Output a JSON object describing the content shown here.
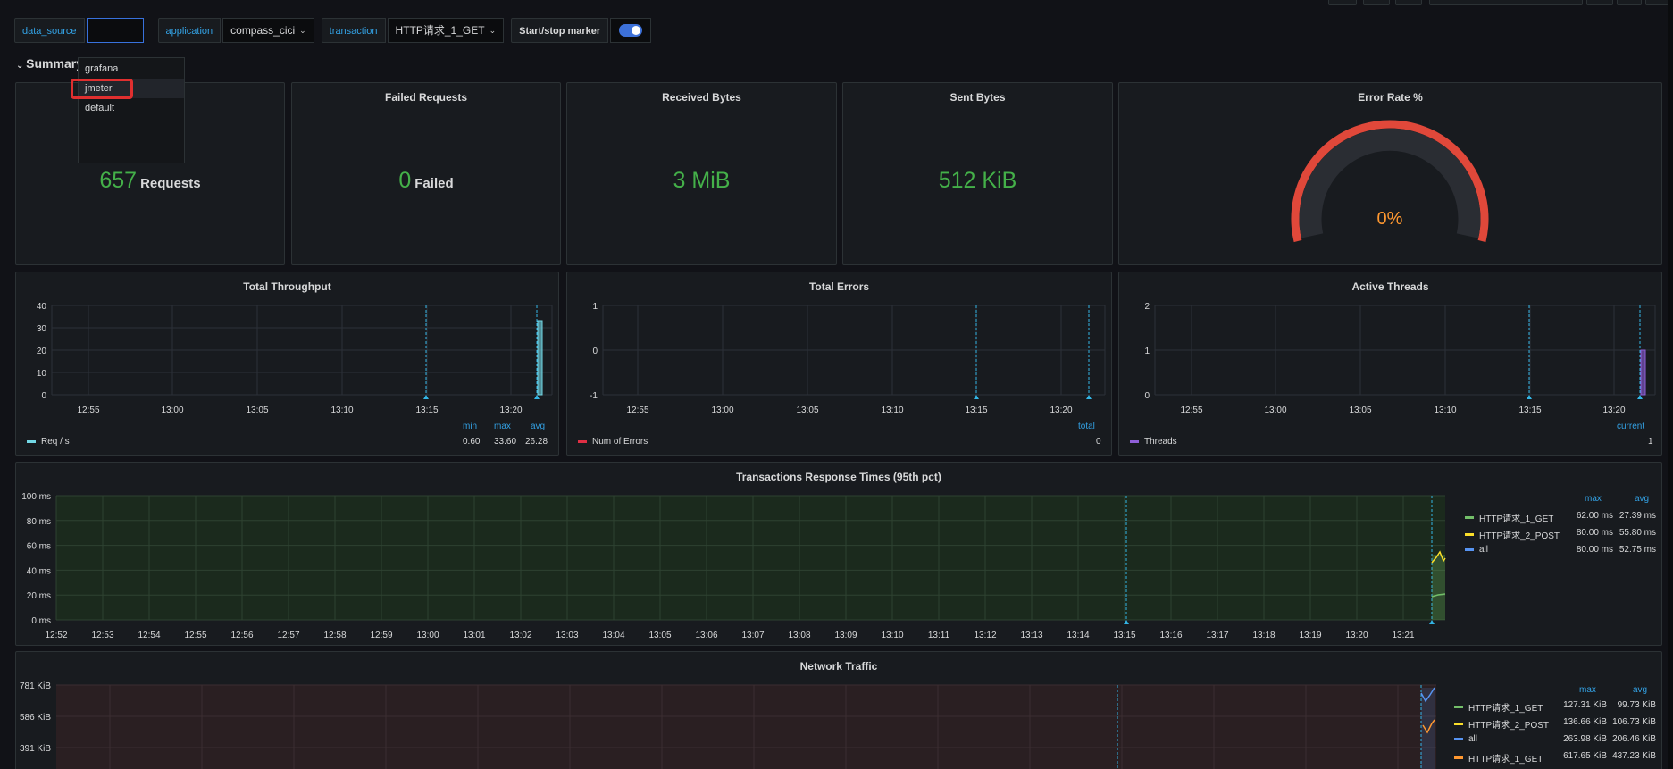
{
  "variables": {
    "data_source_label": "data_source",
    "data_source_value": "",
    "application_label": "application",
    "application_value": "compass_cici",
    "transaction_label": "transaction",
    "transaction_value": "HTTP请求_1_GET",
    "marker_label": "Start/stop marker"
  },
  "dropdown": {
    "options": [
      "grafana",
      "jmeter",
      "default"
    ],
    "highlighted": "jmeter"
  },
  "summary_row": {
    "title": "Summary"
  },
  "stats": {
    "requests": {
      "value": "657",
      "unit": "Requests"
    },
    "failed": {
      "title": "Failed Requests",
      "value": "0",
      "unit": "Failed"
    },
    "received": {
      "title": "Received Bytes",
      "value": "3 MiB"
    },
    "sent": {
      "title": "Sent Bytes",
      "value": "512 KiB"
    },
    "error_rate": {
      "title": "Error Rate %",
      "value": "0%"
    }
  },
  "throughput": {
    "title": "Total Throughput",
    "yticks": [
      "40",
      "30",
      "20",
      "10",
      "0"
    ],
    "xticks": [
      "12:55",
      "13:00",
      "13:05",
      "13:10",
      "13:15",
      "13:20"
    ],
    "legend": {
      "name": "Req / s",
      "headers": [
        "min",
        "max",
        "avg"
      ],
      "values": [
        "0.60",
        "33.60",
        "26.28"
      ]
    }
  },
  "errors": {
    "title": "Total Errors",
    "yticks": [
      "1",
      "0",
      "-1"
    ],
    "xticks": [
      "12:55",
      "13:00",
      "13:05",
      "13:10",
      "13:15",
      "13:20"
    ],
    "legend": {
      "name": "Num of Errors",
      "headers": [
        "total"
      ],
      "values": [
        "0"
      ]
    }
  },
  "threads": {
    "title": "Active Threads",
    "yticks": [
      "2",
      "1",
      "0"
    ],
    "xticks": [
      "12:55",
      "13:00",
      "13:05",
      "13:10",
      "13:15",
      "13:20"
    ],
    "legend": {
      "name": "Threads",
      "headers": [
        "current"
      ],
      "values": [
        "1"
      ]
    }
  },
  "response_times": {
    "title": "Transactions Response Times (95th pct)",
    "yticks": [
      "100 ms",
      "80 ms",
      "60 ms",
      "40 ms",
      "20 ms",
      "0 ms"
    ],
    "xticks": [
      "12:52",
      "12:53",
      "12:54",
      "12:55",
      "12:56",
      "12:57",
      "12:58",
      "12:59",
      "13:00",
      "13:01",
      "13:02",
      "13:03",
      "13:04",
      "13:05",
      "13:06",
      "13:07",
      "13:08",
      "13:09",
      "13:10",
      "13:11",
      "13:12",
      "13:13",
      "13:14",
      "13:15",
      "13:16",
      "13:17",
      "13:18",
      "13:19",
      "13:20",
      "13:21"
    ],
    "legend_headers": [
      "max",
      "avg"
    ],
    "legend": [
      {
        "name": "HTTP请求_1_GET",
        "max": "62.00 ms",
        "avg": "27.39 ms",
        "color": "#73bf69"
      },
      {
        "name": "HTTP请求_2_POST",
        "max": "80.00 ms",
        "avg": "55.80 ms",
        "color": "#fade2a"
      },
      {
        "name": "all",
        "max": "80.00 ms",
        "avg": "52.75 ms",
        "color": "#5794f2"
      }
    ]
  },
  "network": {
    "title": "Network Traffic",
    "yticks": [
      "781 KiB",
      "586 KiB",
      "391 KiB"
    ],
    "legend_headers": [
      "max",
      "avg"
    ],
    "legend": [
      {
        "name": "HTTP请求_1_GET",
        "max": "127.31 KiB",
        "avg": "99.73 KiB",
        "color": "#73bf69"
      },
      {
        "name": "HTTP请求_2_POST",
        "max": "136.66 KiB",
        "avg": "106.73 KiB",
        "color": "#fade2a"
      },
      {
        "name": "all",
        "max": "263.98 KiB",
        "avg": "206.46 KiB",
        "color": "#5794f2"
      },
      {
        "name": "HTTP请求_1_GET",
        "max": "617.65 KiB",
        "avg": "437.23 KiB",
        "color": "#ff9830"
      }
    ]
  },
  "colors": {
    "accent": "#33a2e5",
    "stat_green": "#44b049",
    "gauge_red": "#e0483a",
    "gauge_text": "#ff9830"
  }
}
